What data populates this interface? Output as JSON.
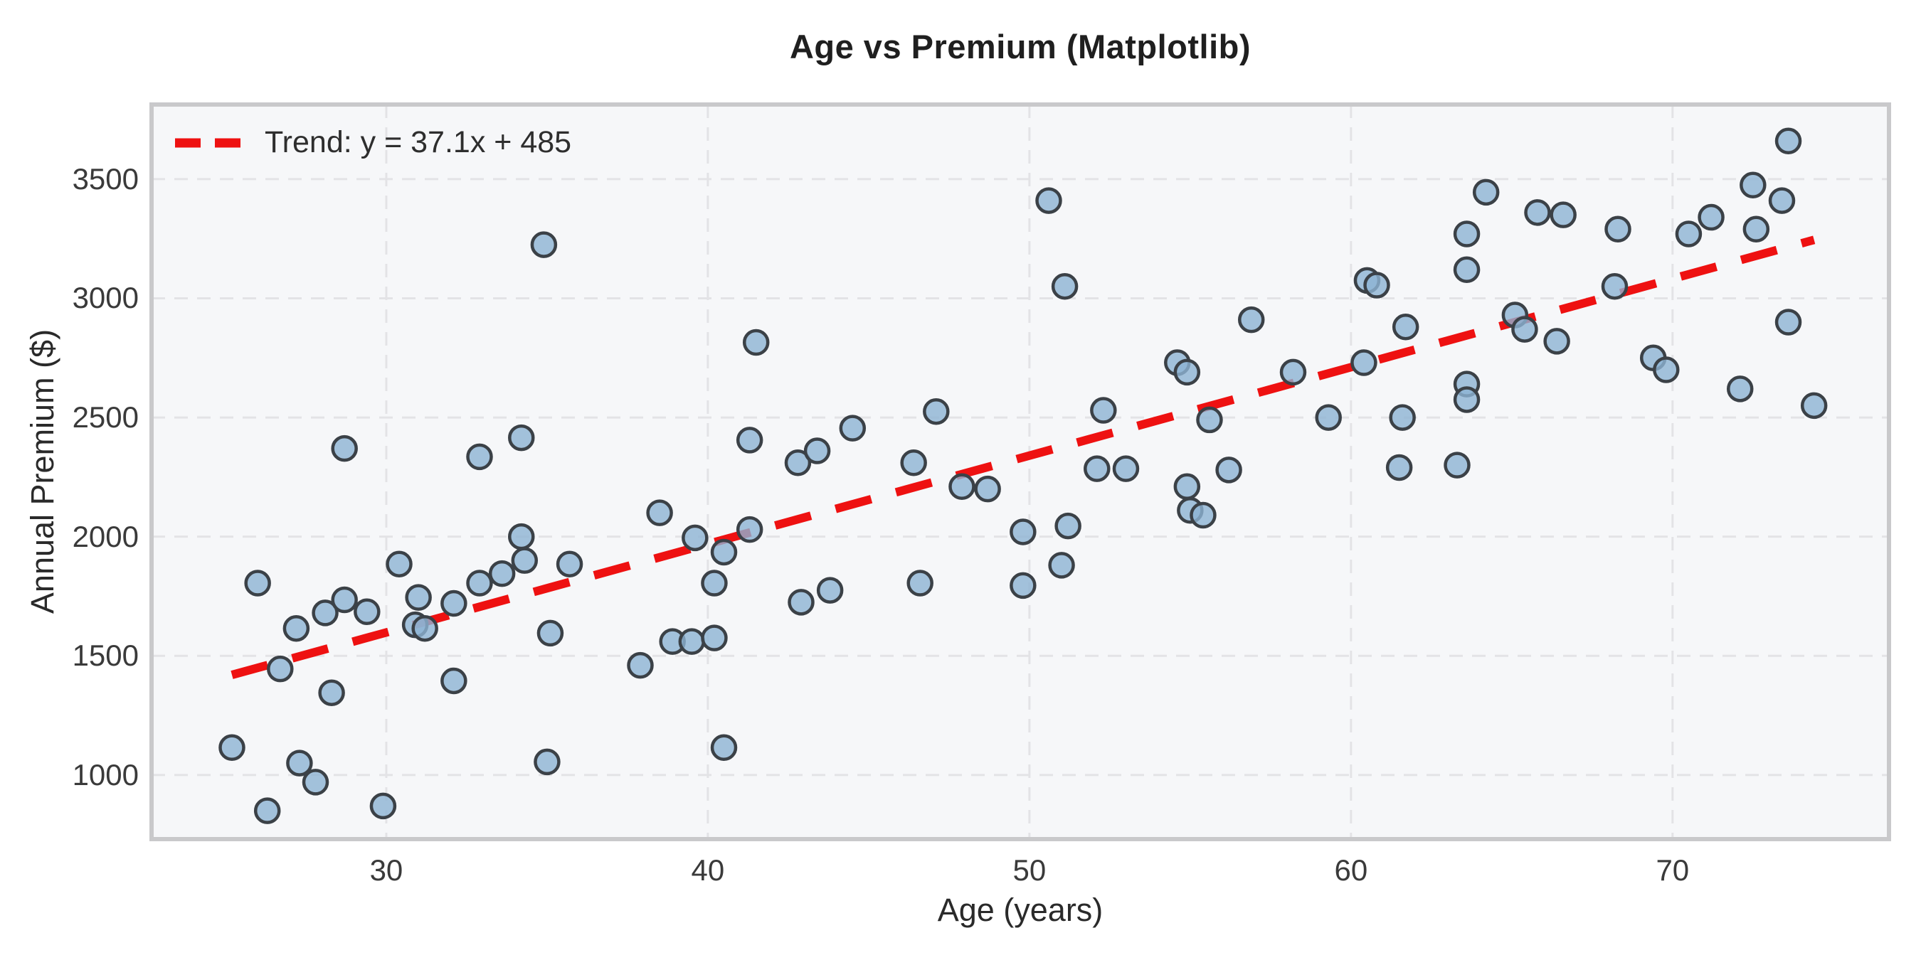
{
  "chart_data": {
    "type": "scatter",
    "title": "Age vs Premium (Matplotlib)",
    "xlabel": "Age (years)",
    "ylabel": "Annual Premium ($)",
    "legend_label": "Trend: y = 37.1x + 485",
    "legend_position": "upper left",
    "x_ticks": [
      30,
      40,
      50,
      60,
      70
    ],
    "y_ticks": [
      1000,
      1500,
      2000,
      2500,
      3000,
      3500
    ],
    "xlim": [
      22.7,
      76.73
    ],
    "ylim": [
      731,
      3813
    ],
    "grid": true,
    "trend": {
      "slope": 37.1,
      "intercept": 485,
      "x_start": 25.2,
      "x_end": 74.4
    },
    "colors": {
      "figure_bg": "#ffffff",
      "plot_bg": "#f6f7f9",
      "grid": "#e3e3e6",
      "spine": "#c9c9cb",
      "trend_red": "#ee1111",
      "point_fill": "#8db3d3",
      "point_edge": "#3b4147"
    },
    "points": [
      [
        34.9,
        3225
      ],
      [
        28.7,
        2370
      ],
      [
        32.9,
        2335
      ],
      [
        34.2,
        2415
      ],
      [
        41.5,
        2815
      ],
      [
        41.3,
        2405
      ],
      [
        42.8,
        2310
      ],
      [
        43.4,
        2360
      ],
      [
        44.5,
        2455
      ],
      [
        47.1,
        2525
      ],
      [
        46.4,
        2310
      ],
      [
        50.6,
        3410
      ],
      [
        51.1,
        3050
      ],
      [
        56.9,
        2910
      ],
      [
        54.6,
        2730
      ],
      [
        54.9,
        2690
      ],
      [
        58.2,
        2690
      ],
      [
        52.3,
        2530
      ],
      [
        55.6,
        2490
      ],
      [
        60.5,
        3075
      ],
      [
        60.8,
        3055
      ],
      [
        61.7,
        2880
      ],
      [
        60.4,
        2730
      ],
      [
        59.3,
        2500
      ],
      [
        61.6,
        2500
      ],
      [
        61.5,
        2290
      ],
      [
        63.3,
        2300
      ],
      [
        73.6,
        3660
      ],
      [
        64.2,
        3445
      ],
      [
        72.5,
        3475
      ],
      [
        73.4,
        3410
      ],
      [
        65.8,
        3360
      ],
      [
        66.6,
        3350
      ],
      [
        68.3,
        3290
      ],
      [
        71.2,
        3340
      ],
      [
        70.5,
        3270
      ],
      [
        72.6,
        3290
      ],
      [
        63.6,
        3270
      ],
      [
        63.6,
        3120
      ],
      [
        68.2,
        3050
      ],
      [
        65.1,
        2930
      ],
      [
        65.4,
        2870
      ],
      [
        66.4,
        2820
      ],
      [
        73.6,
        2900
      ],
      [
        69.4,
        2750
      ],
      [
        69.8,
        2700
      ],
      [
        72.1,
        2620
      ],
      [
        74.4,
        2550
      ],
      [
        63.6,
        2640
      ],
      [
        63.6,
        2575
      ],
      [
        26.0,
        1805
      ],
      [
        27.2,
        1615
      ],
      [
        28.1,
        1680
      ],
      [
        28.7,
        1735
      ],
      [
        29.4,
        1685
      ],
      [
        30.4,
        1885
      ],
      [
        31.0,
        1745
      ],
      [
        30.9,
        1630
      ],
      [
        31.2,
        1615
      ],
      [
        32.1,
        1720
      ],
      [
        32.9,
        1805
      ],
      [
        34.2,
        2000
      ],
      [
        34.3,
        1900
      ],
      [
        33.6,
        1845
      ],
      [
        35.7,
        1885
      ],
      [
        35.1,
        1595
      ],
      [
        26.7,
        1445
      ],
      [
        28.3,
        1345
      ],
      [
        25.2,
        1115
      ],
      [
        27.3,
        1050
      ],
      [
        27.8,
        970
      ],
      [
        26.3,
        850
      ],
      [
        29.9,
        870
      ],
      [
        32.1,
        1395
      ],
      [
        35.0,
        1055
      ],
      [
        38.5,
        2100
      ],
      [
        39.6,
        1995
      ],
      [
        41.3,
        2030
      ],
      [
        40.5,
        1935
      ],
      [
        40.2,
        1805
      ],
      [
        42.9,
        1725
      ],
      [
        43.8,
        1775
      ],
      [
        46.6,
        1805
      ],
      [
        38.9,
        1560
      ],
      [
        39.5,
        1560
      ],
      [
        40.2,
        1575
      ],
      [
        37.9,
        1460
      ],
      [
        40.5,
        1115
      ],
      [
        47.9,
        2210
      ],
      [
        48.7,
        2200
      ],
      [
        49.8,
        2020
      ],
      [
        49.8,
        1795
      ],
      [
        52.1,
        2285
      ],
      [
        53.0,
        2285
      ],
      [
        56.2,
        2280
      ],
      [
        54.9,
        2210
      ],
      [
        55.0,
        2110
      ],
      [
        55.4,
        2090
      ],
      [
        51.2,
        2045
      ],
      [
        51.0,
        1880
      ]
    ]
  }
}
